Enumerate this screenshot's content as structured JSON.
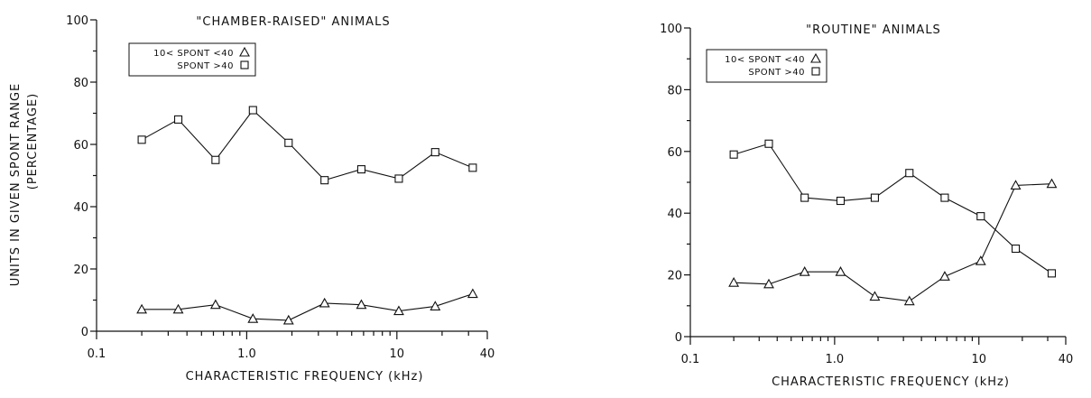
{
  "chart_data": [
    {
      "type": "line",
      "title": "\"CHAMBER-RAISED\" ANIMALS",
      "xlabel": "CHARACTERISTIC  FREQUENCY  (kHz)",
      "ylabel_line1": "UNITS IN GIVEN SPONT RANGE",
      "ylabel_line2": "(PERCENTAGE)",
      "xscale": "log",
      "xlim": [
        0.1,
        40
      ],
      "ylim": [
        0,
        100
      ],
      "xticks": [
        {
          "value": 0.1,
          "label": "0.1"
        },
        {
          "value": 1,
          "label": "1.0"
        },
        {
          "value": 10,
          "label": "10"
        },
        {
          "value": 40,
          "label": "40"
        }
      ],
      "yticks": [
        {
          "value": 0,
          "label": "0"
        },
        {
          "value": 20,
          "label": "20"
        },
        {
          "value": 40,
          "label": "40"
        },
        {
          "value": 60,
          "label": "60"
        },
        {
          "value": 80,
          "label": "80"
        },
        {
          "value": 100,
          "label": "100"
        }
      ],
      "legend_placement": "top-left",
      "series": [
        {
          "name": "10< SPONT <40",
          "marker": "triangle",
          "x": [
            0.2,
            0.35,
            0.62,
            1.1,
            1.9,
            3.3,
            5.8,
            10.3,
            18,
            32
          ],
          "y": [
            7,
            7,
            8.5,
            4,
            3.5,
            9,
            8.5,
            6.5,
            8,
            12
          ]
        },
        {
          "name": "SPONT >40",
          "marker": "square",
          "x": [
            0.2,
            0.35,
            0.62,
            1.1,
            1.9,
            3.3,
            5.8,
            10.3,
            18,
            32
          ],
          "y": [
            61.5,
            68,
            55,
            71,
            60.5,
            48.5,
            52,
            49,
            57.5,
            52.5
          ]
        }
      ]
    },
    {
      "type": "line",
      "title": "\"ROUTINE\" ANIMALS",
      "xlabel": "CHARACTERISTIC  FREQUENCY  (kHz)",
      "xscale": "log",
      "xlim": [
        0.1,
        40
      ],
      "ylim": [
        0,
        100
      ],
      "xticks": [
        {
          "value": 0.1,
          "label": "0.1"
        },
        {
          "value": 1,
          "label": "1.0"
        },
        {
          "value": 10,
          "label": "10"
        },
        {
          "value": 40,
          "label": "40"
        }
      ],
      "yticks": [
        {
          "value": 0,
          "label": "0"
        },
        {
          "value": 20,
          "label": "20"
        },
        {
          "value": 40,
          "label": "40"
        },
        {
          "value": 60,
          "label": "60"
        },
        {
          "value": 80,
          "label": "80"
        },
        {
          "value": 100,
          "label": "100"
        }
      ],
      "legend_placement": "top-left",
      "series": [
        {
          "name": "10< SPONT <40",
          "marker": "triangle",
          "x": [
            0.2,
            0.35,
            0.62,
            1.1,
            1.9,
            3.3,
            5.8,
            10.3,
            18,
            32
          ],
          "y": [
            17.5,
            17,
            21,
            21,
            13,
            11.5,
            19.5,
            24.5,
            49,
            49.5
          ]
        },
        {
          "name": "SPONT >40",
          "marker": "square",
          "x": [
            0.2,
            0.35,
            0.62,
            1.1,
            1.9,
            3.3,
            5.8,
            10.3,
            18,
            32
          ],
          "y": [
            59,
            62.5,
            45,
            44,
            45,
            53,
            45,
            39,
            28.5,
            20.5
          ]
        }
      ]
    }
  ]
}
